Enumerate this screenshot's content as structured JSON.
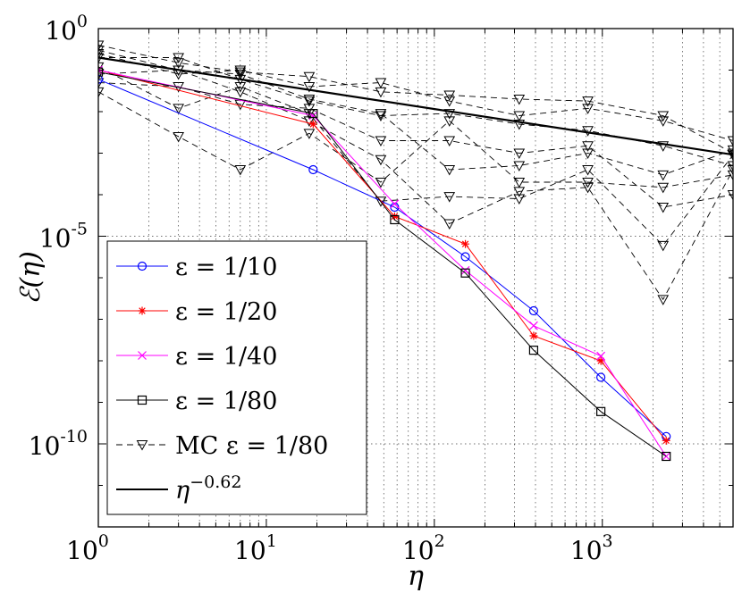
{
  "chart_data": {
    "type": "line",
    "title": "",
    "xlabel": "η",
    "ylabel": "ℰ(η)",
    "xscale": "log",
    "yscale": "log",
    "xlim": [
      1,
      6000
    ],
    "ylim": [
      1e-12,
      1
    ],
    "grid": true,
    "legend_position": "bottom-left",
    "x_ticks": [
      {
        "value": 1,
        "base": "10",
        "exp": "0"
      },
      {
        "value": 10,
        "base": "10",
        "exp": "1"
      },
      {
        "value": 100,
        "base": "10",
        "exp": "2"
      },
      {
        "value": 1000,
        "base": "10",
        "exp": "3"
      }
    ],
    "y_ticks": [
      {
        "value": 1,
        "base": "10",
        "exp": "0"
      },
      {
        "value": 1e-05,
        "base": "10",
        "exp": "-5"
      },
      {
        "value": 1e-10,
        "base": "10",
        "exp": "-10"
      }
    ],
    "series": [
      {
        "name": "ε = 1/10",
        "color": "#0000ff",
        "marker": "circle",
        "x": [
          1,
          19,
          58,
          153,
          390,
          980,
          2400
        ],
        "y": [
          0.06,
          0.0004,
          5e-05,
          3.2e-06,
          1.6e-07,
          4e-09,
          1.5e-10
        ]
      },
      {
        "name": "ε = 1/20",
        "color": "#ff0000",
        "marker": "star",
        "x": [
          1,
          19,
          58,
          153,
          390,
          980,
          2400
        ],
        "y": [
          0.1,
          0.005,
          3e-05,
          6.5e-06,
          4e-08,
          1e-08,
          1.2e-10
        ]
      },
      {
        "name": "ε = 1/40",
        "color": "#ff00ff",
        "marker": "x",
        "x": [
          1,
          19,
          58,
          153,
          390,
          980,
          2400
        ],
        "y": [
          0.1,
          0.008,
          6e-05,
          1.5e-06,
          7e-08,
          1.3e-08,
          5e-11
        ]
      },
      {
        "name": "ε = 1/80",
        "color": "#000000",
        "marker": "square",
        "x": [
          1,
          19,
          58,
          153,
          390,
          980,
          2400
        ],
        "y": [
          0.09,
          0.009,
          2.5e-05,
          1.3e-06,
          1.8e-08,
          6e-10,
          5e-11
        ]
      },
      {
        "name": "MC ε = 1/80",
        "color": "#000000",
        "marker": "triangle-down",
        "dashed": true,
        "runs": [
          {
            "x": [
              1,
              3,
              7,
              18,
              48,
              123,
              320,
              820,
              2300,
              6000
            ],
            "y": [
              0.4,
              0.15,
              0.09,
              0.07,
              0.03,
              0.025,
              0.02,
              0.018,
              0.008,
              0.001
            ]
          },
          {
            "x": [
              1,
              3,
              7,
              18,
              48,
              123,
              320,
              820,
              2300,
              6000
            ],
            "y": [
              0.25,
              0.08,
              0.1,
              0.04,
              0.05,
              0.018,
              0.008,
              0.012,
              0.006,
              0.002
            ]
          },
          {
            "x": [
              1,
              3,
              7,
              18,
              48,
              123,
              320,
              820,
              2300,
              6000
            ],
            "y": [
              0.2,
              0.2,
              0.06,
              0.018,
              0.008,
              0.009,
              0.005,
              0.0035,
              0.0015,
              0.0005
            ]
          },
          {
            "x": [
              1,
              3,
              7,
              18,
              48,
              123,
              320,
              820,
              2300,
              6000
            ],
            "y": [
              0.12,
              0.012,
              0.04,
              0.009,
              7e-05,
              9e-05,
              8e-05,
              0.0004,
              6e-06,
              0.0009
            ]
          },
          {
            "x": [
              1,
              3,
              7,
              18,
              48,
              123,
              320,
              820,
              2300,
              6000
            ],
            "y": [
              0.08,
              0.1,
              0.08,
              0.02,
              0.009,
              0.0004,
              0.0005,
              0.001,
              0.0003,
              0.0012
            ]
          },
          {
            "x": [
              1,
              3,
              7,
              18,
              48,
              123,
              320,
              820,
              2300,
              6000
            ],
            "y": [
              0.03,
              0.0025,
              0.0004,
              0.003,
              0.0002,
              0.006,
              0.0002,
              0.0002,
              0.00015,
              0.0003
            ]
          },
          {
            "x": [
              1,
              3,
              7,
              18,
              48,
              123,
              320,
              820,
              2300,
              6000
            ],
            "y": [
              0.3,
              0.1,
              0.03,
              0.006,
              0.0007,
              2e-05,
              0.00012,
              0.00015,
              3e-07,
              0.0004
            ]
          },
          {
            "x": [
              1,
              3,
              7,
              18,
              48,
              123,
              320,
              820,
              2300,
              6000
            ],
            "y": [
              0.05,
              0.04,
              0.015,
              0.012,
              0.002,
              0.002,
              0.001,
              0.0015,
              5e-05,
              0.0001
            ]
          }
        ]
      },
      {
        "name": "η^-0.62",
        "color": "#000000",
        "marker": "none",
        "bold": true,
        "x": [
          1,
          6000
        ],
        "y": [
          0.2,
          0.00092
        ]
      }
    ],
    "legend": [
      {
        "prefix": "",
        "text": "ε = 1/10",
        "series": 0
      },
      {
        "prefix": "",
        "text": "ε = 1/20",
        "series": 1
      },
      {
        "prefix": "",
        "text": "ε = 1/40",
        "series": 2
      },
      {
        "prefix": "",
        "text": "ε = 1/80",
        "series": 3
      },
      {
        "prefix": "MC ",
        "text": "ε = 1/80",
        "series": 4
      },
      {
        "prefix": "η",
        "text": "−0.62",
        "series": 5,
        "superscript": true
      }
    ]
  }
}
